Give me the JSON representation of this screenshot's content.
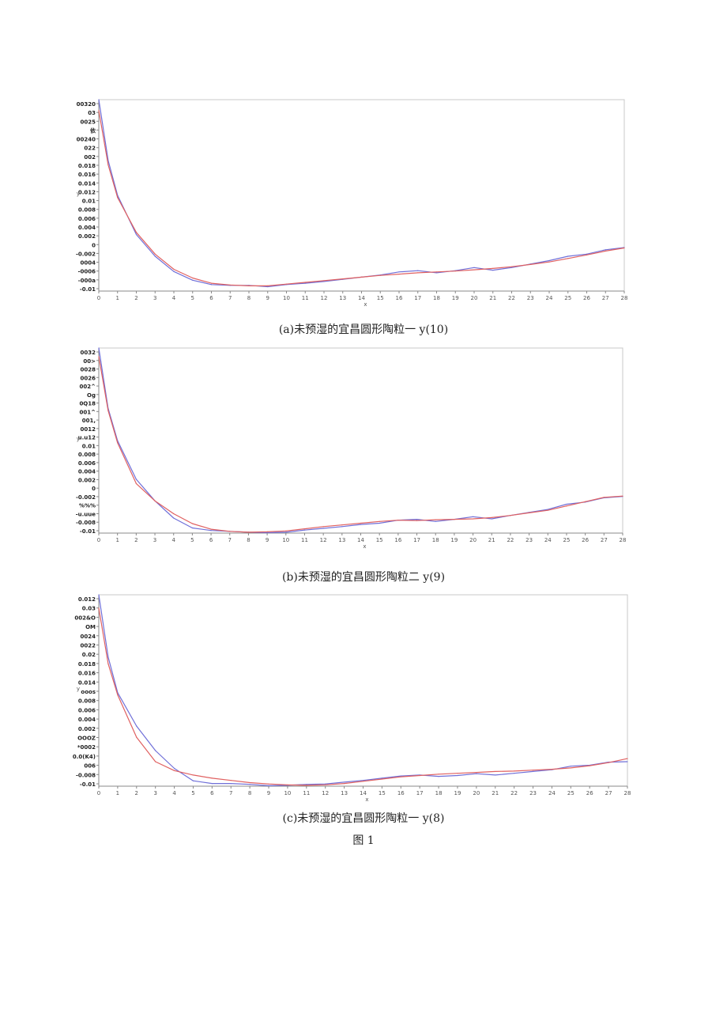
{
  "figure_label": "图 1",
  "chart_data": [
    {
      "type": "line",
      "caption": "(a)未预湿的宜昌圆形陶粒一 y(10)",
      "xlabel": "x",
      "ylabel": "y",
      "x": [
        0,
        0.5,
        1,
        2,
        3,
        4,
        5,
        6,
        7,
        8,
        9,
        10,
        11,
        12,
        13,
        14,
        15,
        16,
        17,
        18,
        19,
        20,
        21,
        22,
        23,
        24,
        25,
        26,
        27,
        28
      ],
      "xlim": [
        0,
        28
      ],
      "ylim": [
        -0.012,
        0.032
      ],
      "grid": false,
      "y_tick_labels": [
        "00320",
        "03",
        "0025",
        "依",
        "00240",
        "022",
        "002",
        "0.018",
        "0.016",
        "0.014",
        "0.012",
        "0.01",
        "0.008",
        "0.006",
        "0.004",
        "0.002",
        "0",
        "-0.002",
        "0004",
        "-0006",
        "-000a",
        "-0.01"
      ],
      "x_tick_labels": [
        "0",
        "1",
        "2",
        "3",
        "4",
        "5",
        "6",
        "7",
        "8",
        "9",
        "10",
        "11",
        "12",
        "13",
        "14",
        "15",
        "16",
        "17",
        "18",
        "19",
        "20",
        "21",
        "22",
        "23",
        "24",
        "25",
        "26",
        "27",
        "28"
      ],
      "series": [
        {
          "color": "#6f6fd8",
          "values": [
            0.032,
            0.018,
            0.01,
            0.001,
            -0.004,
            -0.0075,
            -0.0095,
            -0.0105,
            -0.0107,
            -0.0107,
            -0.011,
            -0.0105,
            -0.0102,
            -0.0098,
            -0.0093,
            -0.0088,
            -0.0083,
            -0.0076,
            -0.0073,
            -0.0078,
            -0.0073,
            -0.0066,
            -0.0072,
            -0.0066,
            -0.0058,
            -0.005,
            -0.004,
            -0.0035,
            -0.0025,
            -0.002
          ]
        },
        {
          "color": "#e06060",
          "values": [
            0.0295,
            0.017,
            0.0095,
            0.0015,
            -0.0035,
            -0.007,
            -0.009,
            -0.0102,
            -0.0106,
            -0.0108,
            -0.0108,
            -0.0104,
            -0.01,
            -0.0096,
            -0.0092,
            -0.0088,
            -0.0084,
            -0.0081,
            -0.0078,
            -0.0076,
            -0.0074,
            -0.0071,
            -0.0068,
            -0.0064,
            -0.0059,
            -0.0053,
            -0.0045,
            -0.0037,
            -0.0028,
            -0.0021
          ]
        }
      ]
    },
    {
      "type": "line",
      "caption": "(b)未预湿的宜昌圆形陶粒二 y(9)",
      "xlabel": "x",
      "ylabel": "y",
      "x": [
        0,
        0.5,
        1,
        2,
        3,
        4,
        5,
        6,
        7,
        8,
        9,
        10,
        11,
        12,
        13,
        14,
        15,
        16,
        17,
        18,
        19,
        20,
        21,
        22,
        23,
        24,
        25,
        26,
        27,
        28
      ],
      "xlim": [
        0,
        28
      ],
      "ylim": [
        -0.011,
        0.032
      ],
      "grid": false,
      "y_tick_labels": [
        "0032",
        "00>",
        "0028",
        "0026",
        "002^",
        "Og",
        "0Q18",
        "001^",
        "001,",
        "0012",
        "u.u12",
        "0.01",
        "0.008",
        "0.006",
        "0.004",
        "0.002",
        "0",
        "-0.002",
        "%%%",
        "-u.uue",
        "-0.008",
        "-0.01"
      ],
      "x_tick_labels": [
        "0",
        "1",
        "2",
        "3",
        "4",
        "5",
        "6",
        "7",
        "8",
        "9",
        "10",
        "11",
        "12",
        "13",
        "14",
        "15",
        "16",
        "17",
        "18",
        "19",
        "20",
        "21",
        "22",
        "23",
        "24",
        "25",
        "26",
        "27",
        "28"
      ],
      "series": [
        {
          "color": "#6f6fd8",
          "values": [
            0.032,
            0.018,
            0.0105,
            0.0015,
            -0.0035,
            -0.0075,
            -0.0098,
            -0.0104,
            -0.0106,
            -0.0108,
            -0.0109,
            -0.0108,
            -0.0103,
            -0.0099,
            -0.0095,
            -0.009,
            -0.0087,
            -0.008,
            -0.0078,
            -0.0083,
            -0.0078,
            -0.0072,
            -0.0077,
            -0.0069,
            -0.0062,
            -0.0055,
            -0.0043,
            -0.0038,
            -0.0028,
            -0.0025
          ]
        },
        {
          "color": "#e06060",
          "values": [
            0.03,
            0.0175,
            0.01,
            0.0005,
            -0.0035,
            -0.0065,
            -0.0088,
            -0.0101,
            -0.0106,
            -0.0108,
            -0.0107,
            -0.0105,
            -0.01,
            -0.0095,
            -0.0091,
            -0.0087,
            -0.0083,
            -0.008,
            -0.0081,
            -0.0079,
            -0.0078,
            -0.0077,
            -0.0074,
            -0.0069,
            -0.0063,
            -0.0057,
            -0.0047,
            -0.0037,
            -0.0027,
            -0.0024
          ]
        }
      ]
    },
    {
      "type": "line",
      "caption": "(c)未预湿的宜昌圆形陶粒一 y(8)",
      "xlabel": "x",
      "ylabel": "y",
      "x": [
        0,
        0.5,
        1,
        2,
        3,
        4,
        5,
        6,
        7,
        8,
        9,
        10,
        11,
        12,
        13,
        14,
        15,
        16,
        17,
        18,
        19,
        20,
        21,
        22,
        23,
        24,
        25,
        26,
        27,
        28
      ],
      "xlim": [
        0,
        28
      ],
      "ylim": [
        -0.011,
        0.032
      ],
      "grid": false,
      "y_tick_labels": [
        "0.012",
        "0.03",
        "002&O",
        "OM",
        "0024",
        "0022",
        "0.02",
        "0.018",
        "0.016",
        "0.014",
        "ooos",
        "0.008",
        "0.006",
        "0.004",
        "0.002",
        "OOOZ",
        "*0002",
        "0.0(K4)",
        "006",
        "-0.008",
        "-0.01"
      ],
      "x_tick_labels": [
        "0",
        "1",
        "2",
        "3",
        "4",
        "5",
        "6",
        "7",
        "8",
        "9",
        "10",
        "11",
        "12",
        "13",
        "14",
        "15",
        "16",
        "17",
        "18",
        "19",
        "20",
        "21",
        "22",
        "23",
        "24",
        "25",
        "26",
        "27",
        "28"
      ],
      "series": [
        {
          "color": "#6f6fd8",
          "values": [
            0.032,
            0.018,
            0.01,
            0.0025,
            -0.003,
            -0.007,
            -0.0098,
            -0.0104,
            -0.0104,
            -0.0106,
            -0.0109,
            -0.0108,
            -0.0106,
            -0.0105,
            -0.0101,
            -0.0097,
            -0.0092,
            -0.0087,
            -0.0085,
            -0.0088,
            -0.0086,
            -0.0082,
            -0.0085,
            -0.0081,
            -0.0077,
            -0.0073,
            -0.0065,
            -0.0063,
            -0.0056,
            -0.0055
          ]
        },
        {
          "color": "#e06060",
          "values": [
            0.029,
            0.0165,
            0.0095,
            0.0,
            -0.0055,
            -0.0075,
            -0.0085,
            -0.0092,
            -0.0097,
            -0.0102,
            -0.0105,
            -0.0107,
            -0.0108,
            -0.0107,
            -0.0104,
            -0.0099,
            -0.0094,
            -0.0089,
            -0.0086,
            -0.0083,
            -0.0081,
            -0.0079,
            -0.0077,
            -0.0076,
            -0.0074,
            -0.0072,
            -0.0069,
            -0.0064,
            -0.0057,
            -0.0048
          ]
        }
      ]
    }
  ]
}
